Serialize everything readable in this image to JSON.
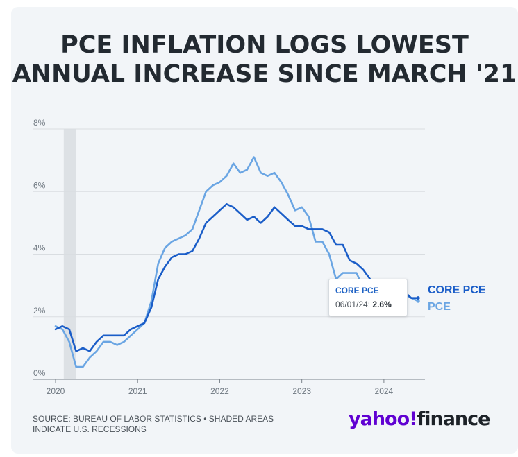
{
  "chart_data": {
    "type": "line",
    "title": "PCE INFLATION LOGS LOWEST ANNUAL INCREASE SINCE MARCH '21",
    "xlabel": "",
    "ylabel": "",
    "x_unit": "year",
    "xlim": [
      2020.0,
      2024.5
    ],
    "ylim": [
      0,
      8
    ],
    "x_ticks": [
      "2020",
      "2021",
      "2022",
      "2023",
      "2024"
    ],
    "y_ticks": [
      "0%",
      "2%",
      "4%",
      "6%",
      "8%"
    ],
    "grid": "horizontal",
    "shaded_regions": [
      {
        "x0": 2020.1,
        "x1": 2020.25
      }
    ],
    "series": [
      {
        "name": "CORE PCE",
        "color": "#1a5dc8",
        "x": [
          2020.0,
          2020.083,
          2020.167,
          2020.25,
          2020.333,
          2020.417,
          2020.5,
          2020.583,
          2020.667,
          2020.75,
          2020.833,
          2020.917,
          2021.0,
          2021.083,
          2021.167,
          2021.25,
          2021.333,
          2021.417,
          2021.5,
          2021.583,
          2021.667,
          2021.75,
          2021.833,
          2021.917,
          2022.0,
          2022.083,
          2022.167,
          2022.25,
          2022.333,
          2022.417,
          2022.5,
          2022.583,
          2022.667,
          2022.75,
          2022.833,
          2022.917,
          2023.0,
          2023.083,
          2023.167,
          2023.25,
          2023.333,
          2023.417,
          2023.5,
          2023.583,
          2023.667,
          2023.75,
          2023.833,
          2023.917,
          2024.0,
          2024.083,
          2024.167,
          2024.25,
          2024.333,
          2024.417
        ],
        "y": [
          1.6,
          1.7,
          1.6,
          0.9,
          1.0,
          0.9,
          1.2,
          1.4,
          1.4,
          1.4,
          1.4,
          1.6,
          1.7,
          1.8,
          2.3,
          3.2,
          3.6,
          3.9,
          4.0,
          4.0,
          4.1,
          4.5,
          5.0,
          5.2,
          5.4,
          5.6,
          5.5,
          5.3,
          5.1,
          5.2,
          5.0,
          5.2,
          5.5,
          5.3,
          5.1,
          4.9,
          4.9,
          4.8,
          4.8,
          4.8,
          4.7,
          4.3,
          4.3,
          3.8,
          3.7,
          3.5,
          3.2,
          2.9,
          2.8,
          2.9,
          2.8,
          2.8,
          2.6,
          2.6
        ]
      },
      {
        "name": "PCE",
        "color": "#6aa5e3",
        "x": [
          2020.0,
          2020.083,
          2020.167,
          2020.25,
          2020.333,
          2020.417,
          2020.5,
          2020.583,
          2020.667,
          2020.75,
          2020.833,
          2020.917,
          2021.0,
          2021.083,
          2021.167,
          2021.25,
          2021.333,
          2021.417,
          2021.5,
          2021.583,
          2021.667,
          2021.75,
          2021.833,
          2021.917,
          2022.0,
          2022.083,
          2022.167,
          2022.25,
          2022.333,
          2022.417,
          2022.5,
          2022.583,
          2022.667,
          2022.75,
          2022.833,
          2022.917,
          2023.0,
          2023.083,
          2023.167,
          2023.25,
          2023.333,
          2023.417,
          2023.5,
          2023.583,
          2023.667,
          2023.75,
          2023.833,
          2023.917,
          2024.0,
          2024.083,
          2024.167,
          2024.25,
          2024.333,
          2024.417
        ],
        "y": [
          1.7,
          1.6,
          1.2,
          0.4,
          0.4,
          0.7,
          0.9,
          1.2,
          1.2,
          1.1,
          1.2,
          1.4,
          1.6,
          1.8,
          2.5,
          3.7,
          4.2,
          4.4,
          4.5,
          4.6,
          4.8,
          5.4,
          6.0,
          6.2,
          6.3,
          6.5,
          6.9,
          6.6,
          6.7,
          7.1,
          6.6,
          6.5,
          6.6,
          6.3,
          5.9,
          5.4,
          5.5,
          5.2,
          4.4,
          4.4,
          4.0,
          3.2,
          3.4,
          3.4,
          3.4,
          2.9,
          2.7,
          2.6,
          2.5,
          2.5,
          2.7,
          2.7,
          2.6,
          2.5
        ]
      }
    ]
  },
  "title": "PCE INFLATION LOGS LOWEST ANNUAL INCREASE SINCE MARCH '21",
  "tooltip": {
    "series": "CORE PCE",
    "date": "06/01/24:",
    "value": "2.6%"
  },
  "series_labels": {
    "core": "CORE PCE",
    "pce": "PCE"
  },
  "source": {
    "line1": "SOURCE: BUREAU OF LABOR STATISTICS • SHADED AREAS",
    "line2": "INDICATE U.S. RECESSIONS"
  },
  "logo": {
    "yahoo": "yahoo!",
    "finance": "finance"
  }
}
